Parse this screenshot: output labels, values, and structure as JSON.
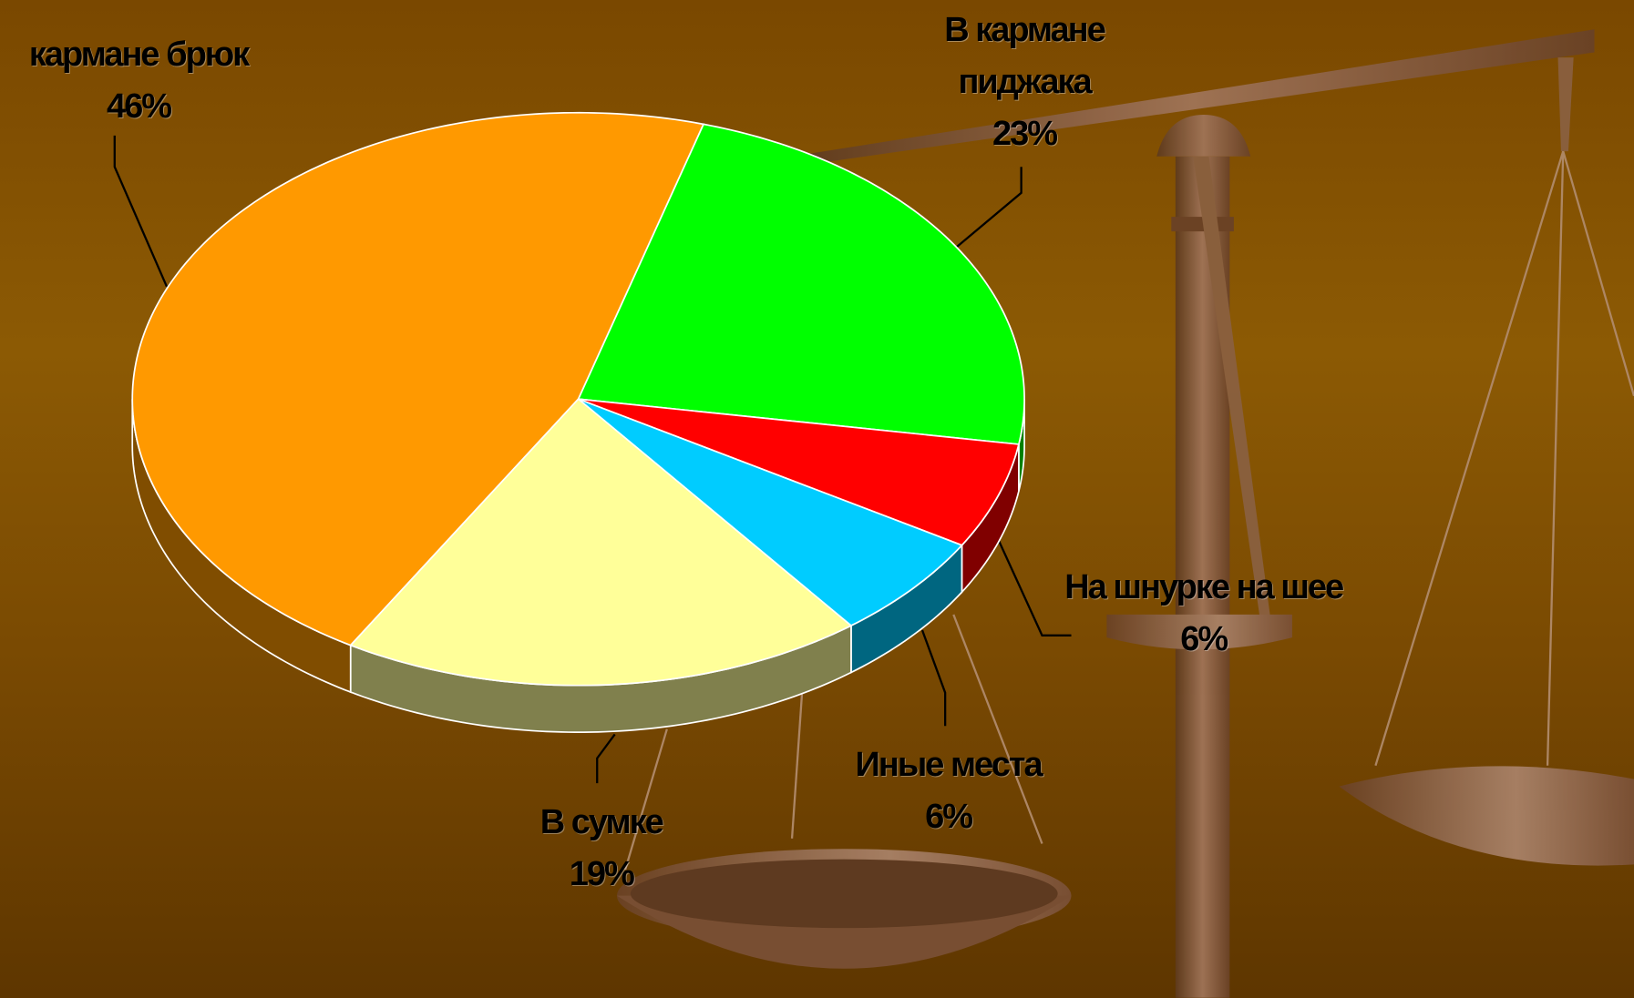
{
  "chart_data": {
    "type": "pie",
    "categories": [
      "кармане брюк",
      "В кармане пиджака",
      "На шнурке на шее",
      "Иные места",
      "В сумке"
    ],
    "values": [
      46,
      23,
      6,
      6,
      19
    ],
    "value_labels": [
      "46%",
      "23%",
      "6%",
      "6%",
      "19%"
    ],
    "colors": [
      "#ff9900",
      "#00ff00",
      "#ff0000",
      "#00ccff",
      "#ffff99"
    ]
  }
}
